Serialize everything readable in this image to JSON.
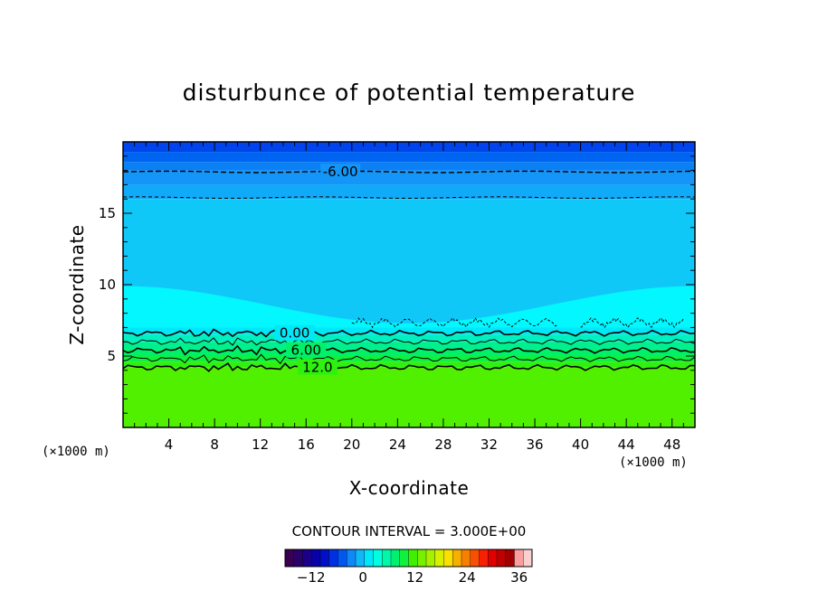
{
  "chart_data": {
    "type": "heatmap",
    "title": "disturbunce of potential temperature",
    "xlabel": "X-coordinate",
    "ylabel": "Z-coordinate",
    "x_unit": "(×1000 m)",
    "y_unit": "(×1000 m)",
    "xlim": [
      0,
      50
    ],
    "ylim": [
      0,
      20
    ],
    "x_ticks": [
      4,
      8,
      12,
      16,
      20,
      24,
      28,
      32,
      36,
      40,
      44,
      48
    ],
    "y_ticks": [
      5,
      10,
      15
    ],
    "contour_interval_text": "CONTOUR INTERVAL = 3.000E+00",
    "colorbar": {
      "min": -18,
      "max": 39,
      "tick_values": [
        -12,
        0,
        12,
        24,
        36
      ],
      "tick_labels": [
        "−12",
        "0",
        "12",
        "24",
        "36"
      ],
      "colors": [
        "#3a0050",
        "#2a006a",
        "#1a0088",
        "#0800a8",
        "#0010c8",
        "#0030e0",
        "#0058f0",
        "#1088f8",
        "#10b8f8",
        "#00e8f8",
        "#00ffe0",
        "#00f8a8",
        "#00f070",
        "#10f040",
        "#40f000",
        "#78f000",
        "#a8f000",
        "#d8f000",
        "#f8e000",
        "#f8b000",
        "#f88000",
        "#f85000",
        "#f82000",
        "#e00000",
        "#c00000",
        "#a00000",
        "#f8a0a0",
        "#f8d0d0"
      ]
    },
    "field_bands": [
      {
        "z_bottom": 19.3,
        "z_top": 20.0,
        "value": -9,
        "color": "#0044ee"
      },
      {
        "z_bottom": 18.6,
        "z_top": 19.3,
        "value": -7.5,
        "color": "#0064f2"
      },
      {
        "z_bottom": 18.0,
        "z_top": 18.6,
        "value": -6,
        "color": "#0a80f4"
      },
      {
        "z_bottom": 17.0,
        "z_top": 18.0,
        "value": -4.5,
        "color": "#1496f8"
      },
      {
        "z_bottom": 16.0,
        "z_top": 17.0,
        "value": -3,
        "color": "#10aaf8"
      },
      {
        "z_bottom": 7.0,
        "z_top": 16.0,
        "value": -1.5,
        "color": "#10c8f8"
      },
      {
        "z_bottom": 6.5,
        "z_top": 7.0,
        "value": 1,
        "color": "#00e8f8"
      },
      {
        "z_bottom": 6.0,
        "z_top": 6.5,
        "value": 3,
        "color": "#00f0c0"
      },
      {
        "z_bottom": 5.5,
        "z_top": 6.0,
        "value": 5,
        "color": "#00f090"
      },
      {
        "z_bottom": 5.0,
        "z_top": 5.5,
        "value": 7,
        "color": "#00f068"
      },
      {
        "z_bottom": 4.6,
        "z_top": 5.0,
        "value": 9,
        "color": "#10f040"
      },
      {
        "z_bottom": 4.2,
        "z_top": 4.6,
        "value": 11,
        "color": "#30f010"
      },
      {
        "z_bottom": 0.0,
        "z_top": 4.2,
        "value": 13,
        "color": "#50f000"
      }
    ],
    "warm_bubble_color": "#00ffff",
    "contours": [
      {
        "level": -6,
        "z": 17.9,
        "style": "dashed"
      },
      {
        "level": -3,
        "z": 16.1,
        "style": "dashed"
      },
      {
        "level": 0,
        "z": 6.6,
        "style": "solid"
      },
      {
        "level": 3,
        "z": 6.0,
        "style": "solid"
      },
      {
        "level": 6,
        "z": 5.4,
        "style": "solid"
      },
      {
        "level": 9,
        "z": 4.8,
        "style": "solid"
      },
      {
        "level": 12,
        "z": 4.2,
        "style": "solid"
      }
    ],
    "contour_labels": [
      {
        "text": "-6.00",
        "x": 19.0,
        "z": 17.9
      },
      {
        "text": "0.00",
        "x": 15.0,
        "z": 6.6
      },
      {
        "text": "6.00",
        "x": 16.0,
        "z": 5.4
      },
      {
        "text": "12.0",
        "x": 17.0,
        "z": 4.2
      }
    ]
  }
}
